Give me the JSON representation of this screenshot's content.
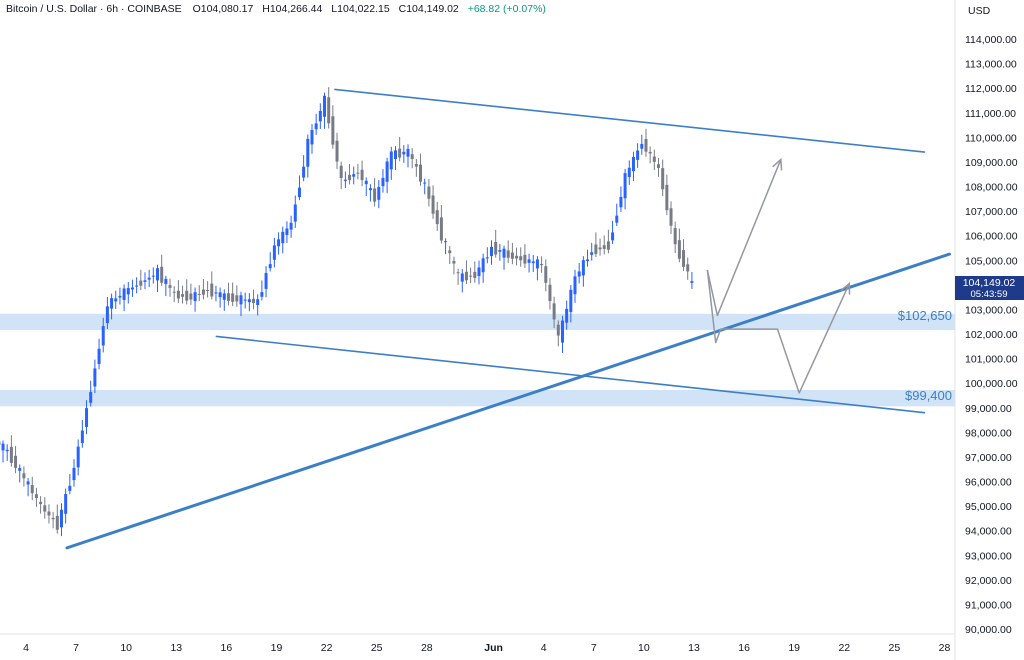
{
  "header": {
    "symbol": "Bitcoin / U.S. Dollar · 6h · COINBASE",
    "open_label": "O",
    "open": "104,080.17",
    "high_label": "H",
    "high": "104,266.44",
    "low_label": "L",
    "low": "104,022.15",
    "close_label": "C",
    "close": "104,149.02",
    "change": "+68.82 (+0.07%)"
  },
  "price_axis": {
    "currency": "USD",
    "current_price": "104,149.02",
    "countdown": "05:43:59"
  },
  "chart_data": {
    "type": "candlestick",
    "title": "Bitcoin / U.S. Dollar · 6h · COINBASE",
    "y_axis": {
      "min": 90000,
      "max": 114000,
      "step": 1000,
      "tick_labels": [
        "114,000.00",
        "113,000.00",
        "112,000.00",
        "111,000.00",
        "110,000.00",
        "109,000.00",
        "108,000.00",
        "107,000.00",
        "106,000.00",
        "105,000.00",
        "104,000.00",
        "103,000.00",
        "102,000.00",
        "101,000.00",
        "100,000.00",
        "99,000.00",
        "98,000.00",
        "97,000.00",
        "96,000.00",
        "95,000.00",
        "94,000.00",
        "93,000.00",
        "92,000.00",
        "91,000.00",
        "90,000.00"
      ]
    },
    "x_axis": {
      "tick_labels": [
        "4",
        "7",
        "10",
        "13",
        "16",
        "19",
        "22",
        "25",
        "28",
        "Jun",
        "4",
        "7",
        "10",
        "13",
        "16",
        "19",
        "22",
        "25",
        "28"
      ],
      "tick_dates": [
        "May 4",
        "May 7",
        "May 10",
        "May 13",
        "May 16",
        "May 19",
        "May 22",
        "May 25",
        "May 28",
        "Jun 1",
        "Jun 4",
        "Jun 7",
        "Jun 10",
        "Jun 13",
        "Jun 16",
        "Jun 19",
        "Jun 22",
        "Jun 25",
        "Jun 28"
      ]
    },
    "candles_approx": [
      {
        "date": "May 3",
        "close": 97200
      },
      {
        "date": "May 4",
        "close": 96100
      },
      {
        "date": "May 5",
        "close": 95000
      },
      {
        "date": "May 6",
        "close": 94200
      },
      {
        "date": "May 7",
        "close": 96600
      },
      {
        "date": "May 8",
        "close": 99800
      },
      {
        "date": "May 9",
        "close": 103200
      },
      {
        "date": "May 10",
        "close": 103700
      },
      {
        "date": "May 11",
        "close": 104100
      },
      {
        "date": "May 12",
        "close": 104500
      },
      {
        "date": "May 13",
        "close": 103600
      },
      {
        "date": "May 14",
        "close": 103500
      },
      {
        "date": "May 15",
        "close": 103800
      },
      {
        "date": "May 16",
        "close": 103500
      },
      {
        "date": "May 17",
        "close": 103400
      },
      {
        "date": "May 18",
        "close": 103300
      },
      {
        "date": "May 19",
        "close": 105600
      },
      {
        "date": "May 20",
        "close": 106500
      },
      {
        "date": "May 21",
        "close": 109800
      },
      {
        "date": "May 22",
        "close": 111500
      },
      {
        "date": "May 23",
        "close": 108200
      },
      {
        "date": "May 24",
        "close": 108600
      },
      {
        "date": "May 25",
        "close": 107500
      },
      {
        "date": "May 26",
        "close": 109300
      },
      {
        "date": "May 27",
        "close": 109400
      },
      {
        "date": "May 28",
        "close": 108000
      },
      {
        "date": "May 29",
        "close": 106000
      },
      {
        "date": "May 30",
        "close": 104300
      },
      {
        "date": "May 31",
        "close": 104400
      },
      {
        "date": "Jun 1",
        "close": 105500
      },
      {
        "date": "Jun 2",
        "close": 105200
      },
      {
        "date": "Jun 3",
        "close": 105000
      },
      {
        "date": "Jun 4",
        "close": 104800
      },
      {
        "date": "Jun 5",
        "close": 101800
      },
      {
        "date": "Jun 6",
        "close": 104300
      },
      {
        "date": "Jun 7",
        "close": 105400
      },
      {
        "date": "Jun 8",
        "close": 105600
      },
      {
        "date": "Jun 9",
        "close": 108400
      },
      {
        "date": "Jun 10",
        "close": 109800
      },
      {
        "date": "Jun 11",
        "close": 108700
      },
      {
        "date": "Jun 12",
        "close": 105600
      },
      {
        "date": "Jun 13",
        "close": 104149
      }
    ],
    "levels": [
      {
        "label": "$102,650",
        "price": 102650
      },
      {
        "label": "$99,400",
        "price": 99400
      }
    ],
    "colors": {
      "up": "#2962ff",
      "down": "#787b86",
      "line": "#3d7fc6",
      "zone": "#c9def4",
      "projection": "#9598a1",
      "price_tag": "#1e3a8a"
    }
  }
}
